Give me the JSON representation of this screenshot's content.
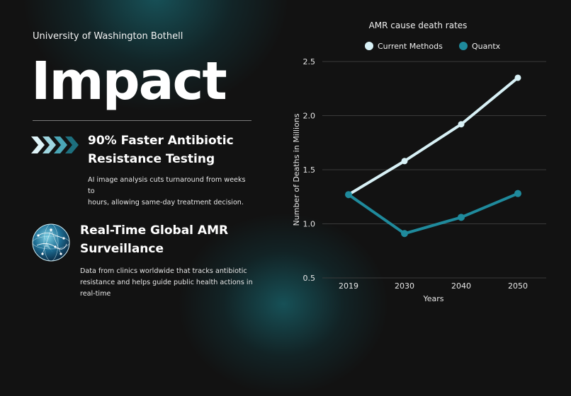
{
  "header": {
    "university": "University of Washington Bothell",
    "title": "Impact"
  },
  "features": [
    {
      "icon": "chevron-arrows-icon",
      "title_line1": "90% Faster Antibiotic",
      "title_line2": "Resistance Testing",
      "desc_line1": "AI image analysis cuts turnaround from weeks to",
      "desc_line2": "hours, allowing same-day treatment decision."
    },
    {
      "icon": "globe-network-icon",
      "title_line1": "Real-Time Global AMR",
      "title_line2": "Surveillance",
      "desc_line1": "Data from clinics worldwide that tracks antibiotic",
      "desc_line2": "resistance and helps guide public health actions in",
      "desc_line3": "real-time"
    }
  ],
  "colors": {
    "background": "#121212",
    "current": "#d8f1f6",
    "quantx": "#1f8a9c",
    "grid": "#3a3a3a"
  },
  "chart_data": {
    "type": "line",
    "title": "AMR cause death rates",
    "xlabel": "Years",
    "ylabel": "Number of Deaths in Millions",
    "categories": [
      "2019",
      "2030",
      "2040",
      "2050"
    ],
    "ylim": [
      0.5,
      2.5
    ],
    "yticks": [
      "0.5",
      "1.0",
      "1.5",
      "2.0",
      "2.5"
    ],
    "grid": true,
    "legend_position": "top",
    "series": [
      {
        "name": "Current Methods",
        "values": [
          1.27,
          1.58,
          1.92,
          2.35
        ]
      },
      {
        "name": "Quantx",
        "values": [
          1.27,
          0.91,
          1.06,
          1.28
        ]
      }
    ]
  }
}
